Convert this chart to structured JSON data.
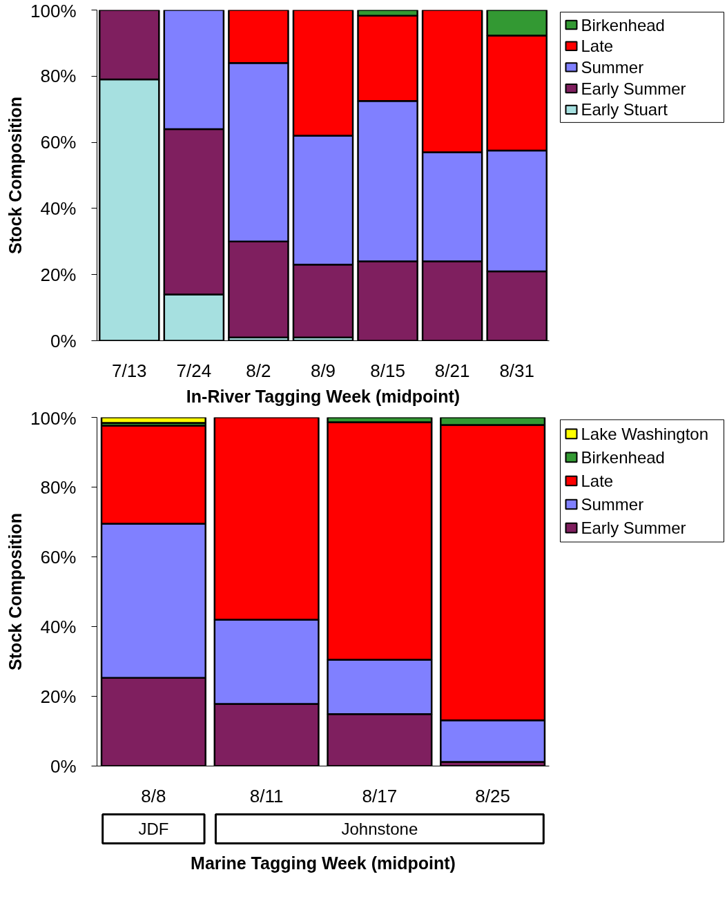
{
  "chart_data": [
    {
      "type": "bar",
      "stacked": true,
      "xlabel": "In-River Tagging Week (midpoint)",
      "ylabel": "Stock Composition",
      "categories": [
        "7/13",
        "7/24",
        "8/2",
        "8/9",
        "8/15",
        "8/21",
        "8/31"
      ],
      "ylim": [
        0,
        100
      ],
      "yticks": [
        {
          "value": 0,
          "label": "0%"
        },
        {
          "value": 20,
          "label": "20%"
        },
        {
          "value": 40,
          "label": "40%"
        },
        {
          "value": 60,
          "label": "60%"
        },
        {
          "value": 80,
          "label": "80%"
        },
        {
          "value": 100,
          "label": "100%"
        }
      ],
      "grid": false,
      "legend": "top right",
      "series": [
        {
          "name": "Early Stuart",
          "color": "#a6e0e0",
          "values": [
            79,
            14,
            1,
            1,
            null,
            null,
            null
          ]
        },
        {
          "name": "Early Summer",
          "color": "#7f1f5f",
          "values": [
            21,
            50,
            29,
            22,
            24,
            24,
            21
          ]
        },
        {
          "name": "Summer",
          "color": "#8080ff",
          "values": [
            null,
            36,
            54,
            39,
            48.5,
            33,
            36.5
          ]
        },
        {
          "name": "Late",
          "color": "#ff0000",
          "values": [
            null,
            null,
            16,
            38,
            25.8,
            43,
            34.8
          ]
        },
        {
          "name": "Birkenhead",
          "color": "#339933",
          "values": [
            null,
            null,
            null,
            null,
            1.7,
            null,
            7.7
          ]
        }
      ]
    },
    {
      "type": "bar",
      "stacked": true,
      "xlabel": "Marine Tagging Week (midpoint)",
      "ylabel": "Stock Composition",
      "categories": [
        "8/8",
        "8/11",
        "8/17",
        "8/25"
      ],
      "annotations": [
        "JDF",
        "Johnstone"
      ],
      "ylim": [
        0,
        100
      ],
      "yticks": [
        {
          "value": 0,
          "label": "0%"
        },
        {
          "value": 20,
          "label": "20%"
        },
        {
          "value": 40,
          "label": "40%"
        },
        {
          "value": 60,
          "label": "60%"
        },
        {
          "value": 80,
          "label": "80%"
        },
        {
          "value": 100,
          "label": "100%"
        }
      ],
      "grid": false,
      "legend": "top right",
      "series": [
        {
          "name": "Early Summer",
          "color": "#7f1f5f",
          "values": [
            25.3,
            17.8,
            14.9,
            1.2
          ]
        },
        {
          "name": "Summer",
          "color": "#8080ff",
          "values": [
            44.2,
            24.2,
            15.6,
            11.9
          ]
        },
        {
          "name": "Late",
          "color": "#ff0000",
          "values": [
            28.1,
            58,
            68.1,
            84.7
          ]
        },
        {
          "name": "Birkenhead",
          "color": "#339933",
          "values": [
            0.8,
            null,
            1.4,
            2.2
          ]
        },
        {
          "name": "Lake Washington",
          "color": "#ffff00",
          "values": [
            1.6,
            null,
            null,
            null
          ]
        }
      ]
    }
  ]
}
